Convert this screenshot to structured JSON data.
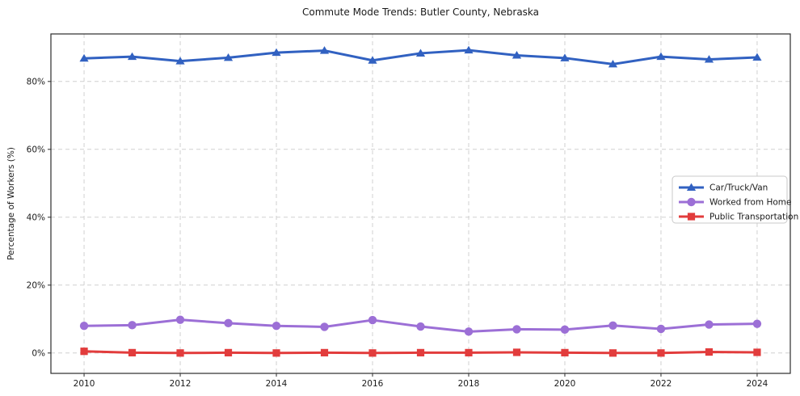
{
  "chart_data": {
    "type": "line",
    "title": "Commute Mode Trends: Butler County, Nebraska",
    "xlabel": "",
    "ylabel": "Percentage of Workers (%)",
    "x": [
      2010,
      2011,
      2012,
      2013,
      2014,
      2015,
      2016,
      2017,
      2018,
      2019,
      2020,
      2021,
      2022,
      2023,
      2024
    ],
    "x_ticks": [
      2010,
      2012,
      2014,
      2016,
      2018,
      2020,
      2022,
      2024
    ],
    "y_ticks": [
      0,
      20,
      40,
      60,
      80
    ],
    "y_tick_labels": [
      "0%",
      "20%",
      "40%",
      "60%",
      "80%"
    ],
    "xlim": [
      2009.31,
      2024.69
    ],
    "ylim": [
      -6,
      94
    ],
    "grid": true,
    "grid_style": "dashed",
    "legend_position": "center right",
    "series": [
      {
        "name": "Car/Truck/Van",
        "color": "#3161c1",
        "marker": "triangle",
        "values": [
          86.8,
          87.3,
          86.0,
          87.0,
          88.5,
          89.1,
          86.2,
          88.3,
          89.2,
          87.7,
          86.9,
          85.1,
          87.3,
          86.5,
          87.1
        ]
      },
      {
        "name": "Worked from Home",
        "color": "#9c6fd6",
        "marker": "circle",
        "values": [
          8.0,
          8.2,
          9.8,
          8.8,
          8.0,
          7.7,
          9.7,
          7.8,
          6.3,
          7.0,
          6.9,
          8.1,
          7.1,
          8.4,
          8.6
        ]
      },
      {
        "name": "Public Transportation",
        "color": "#e23c3c",
        "marker": "square",
        "values": [
          0.5,
          0.1,
          0.0,
          0.1,
          0.0,
          0.1,
          0.0,
          0.1,
          0.1,
          0.2,
          0.1,
          0.0,
          0.0,
          0.3,
          0.2
        ]
      }
    ],
    "colors": {
      "background": "#ffffff",
      "spine": "#2b2b2b",
      "grid": "#d0d0d0",
      "text": "#1a1a1a",
      "legend_border": "#c9c9c9"
    }
  }
}
